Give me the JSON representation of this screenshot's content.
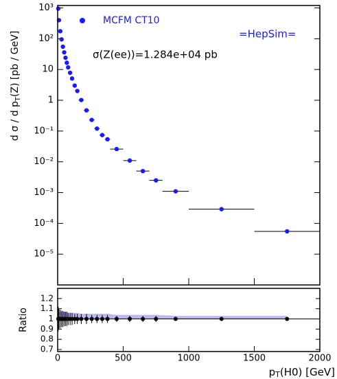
{
  "chart_data": {
    "type": "scatter",
    "legend": "MCFM CT10",
    "brand": "=HepSim=",
    "annotation": "σ(Z(ee))=1.284e+04 pb",
    "xlabel": [
      "p",
      "T",
      "(H0) [GeV]"
    ],
    "ylabel": [
      "d σ / d p",
      "T",
      "(Z) [pb / GeV]"
    ],
    "ratio_label": "Ratio",
    "color": "#1a1aff",
    "band_color": "#9a9ae8",
    "log_y": true,
    "xlim": [
      0,
      2000
    ],
    "xticks": [
      0,
      500,
      1000,
      1500,
      2000
    ],
    "ylim": [
      1e-06,
      1200
    ],
    "yticks": [
      {
        "value": 1000,
        "label": "10³"
      },
      {
        "value": 100,
        "label": "10²"
      },
      10,
      1,
      {
        "value": 0.1,
        "label": "10⁻¹"
      },
      {
        "value": 0.01,
        "label": "10⁻²"
      },
      {
        "value": 0.001,
        "label": "10⁻³"
      },
      {
        "value": 0.0001,
        "label": "10⁻⁴"
      },
      {
        "value": 1e-05,
        "label": "10⁻⁵"
      }
    ],
    "x": [
      5,
      10,
      20,
      30,
      40,
      50,
      60,
      70,
      80,
      95,
      110,
      130,
      150,
      180,
      220,
      260,
      300,
      340,
      380,
      450,
      550,
      650,
      750,
      900,
      1250,
      1750
    ],
    "xerr": [
      5,
      5,
      5,
      5,
      5,
      5,
      5,
      5,
      5,
      10,
      10,
      10,
      10,
      20,
      20,
      20,
      20,
      20,
      20,
      50,
      50,
      50,
      50,
      100,
      250,
      250
    ],
    "values": [
      950,
      400,
      175,
      95,
      55,
      36,
      24,
      16.5,
      11.7,
      7.8,
      5.1,
      3.0,
      2.0,
      1.02,
      0.47,
      0.23,
      0.12,
      0.074,
      0.054,
      0.026,
      0.011,
      0.005,
      0.0025,
      0.0011,
      0.00029,
      5.5e-05
    ],
    "ratio": {
      "ylim": [
        0.68,
        1.3
      ],
      "yticks": [
        0.7,
        0.8,
        0.9,
        1,
        1.1,
        1.2
      ],
      "values": [
        1,
        1,
        1,
        1,
        1,
        1,
        1,
        1,
        1,
        1,
        1,
        1,
        1,
        1,
        1,
        1,
        1,
        1,
        1,
        1,
        1,
        1,
        1,
        1,
        1,
        1
      ],
      "errors": [
        0.12,
        0.1,
        0.09,
        0.08,
        0.08,
        0.07,
        0.07,
        0.07,
        0.06,
        0.06,
        0.06,
        0.05,
        0.05,
        0.05,
        0.05,
        0.04,
        0.04,
        0.04,
        0.04,
        0.03,
        0.03,
        0.03,
        0.03,
        0.02,
        0.02,
        0.02
      ],
      "band_upper": [
        1.08,
        1.07,
        1.07,
        1.07,
        1.07,
        1.07,
        1.07,
        1.07,
        1.06,
        1.06,
        1.06,
        1.06,
        1.06,
        1.05,
        1.05,
        1.05,
        1.05,
        1.05,
        1.05,
        1.04,
        1.04,
        1.04,
        1.04,
        1.03,
        1.03,
        1.03
      ]
    }
  }
}
